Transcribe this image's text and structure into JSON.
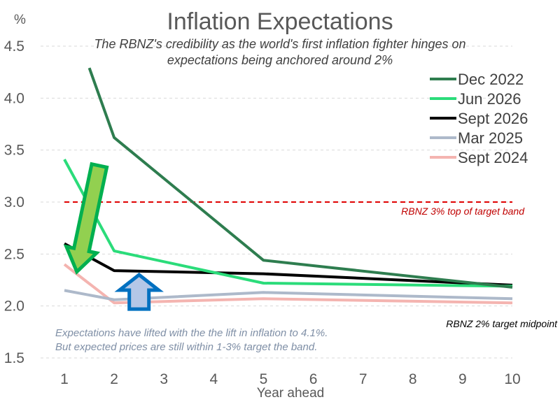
{
  "chart_data": {
    "type": "line",
    "title": "Inflation Expectations",
    "subtitle": "The RBNZ's credibility as the world's first inflation fighter hinges on expectations being anchored around 2%",
    "subtitle_lines": [
      "The RBNZ's credibility as the world's first inflation fighter hinges on",
      "expectations being anchored around 2%"
    ],
    "ylabel": "%",
    "xlabel": "Year ahead",
    "x_ticks": [
      1,
      2,
      3,
      4,
      5,
      6,
      7,
      8,
      9,
      10
    ],
    "ylim": [
      1.5,
      4.5
    ],
    "y_ticks": [
      1.5,
      2.0,
      2.5,
      3.0,
      3.5,
      4.0,
      4.5
    ],
    "y_tick_labels": [
      "1.5",
      "2.0",
      "2.5",
      "3.0",
      "3.5",
      "4.0",
      "4.5"
    ],
    "grid": true,
    "legend_position": "top-right",
    "series": [
      {
        "name": "Dec 2022",
        "color": "#2e7d4f",
        "x": [
          1.5,
          2,
          5,
          10
        ],
        "values": [
          4.29,
          3.62,
          2.44,
          2.18
        ]
      },
      {
        "name": "Jun 2026",
        "color": "#2bdc7a",
        "x": [
          1,
          2,
          5,
          10
        ],
        "values": [
          3.41,
          2.53,
          2.22,
          2.19
        ]
      },
      {
        "name": "Sept 2026",
        "color": "#000000",
        "x": [
          1,
          2,
          5,
          10
        ],
        "values": [
          2.6,
          2.34,
          2.31,
          2.2
        ]
      },
      {
        "name": "Mar 2025",
        "color": "#adb9ca",
        "x": [
          1,
          2,
          5,
          10
        ],
        "values": [
          2.15,
          2.06,
          2.13,
          2.07
        ]
      },
      {
        "name": "Sept 2024",
        "color": "#f4b4b0",
        "x": [
          1,
          2,
          5,
          10
        ],
        "values": [
          2.4,
          2.03,
          2.07,
          2.03
        ]
      }
    ],
    "reference_line": {
      "y": 3.0,
      "color": "#e00000",
      "label": "RBNZ 3% top of target band"
    },
    "annotations": {
      "midpoint_label": "RBNZ 2% target midpoint",
      "note_lines": [
        "Expectations have lifted with the the lift in inflation to 4.1%.",
        "But expected prices are still within 1-3% target the band."
      ]
    },
    "arrows": [
      {
        "name": "down-arrow",
        "direction": "down",
        "from": [
          1.7,
          3.35
        ],
        "to": [
          1.25,
          2.33
        ],
        "fill": "#92d050",
        "stroke": "#00b050"
      },
      {
        "name": "up-arrow",
        "direction": "up",
        "from": [
          2.5,
          1.97
        ],
        "to": [
          2.5,
          2.3
        ],
        "fill": "#b4c7e7",
        "stroke": "#0070c0"
      }
    ]
  }
}
